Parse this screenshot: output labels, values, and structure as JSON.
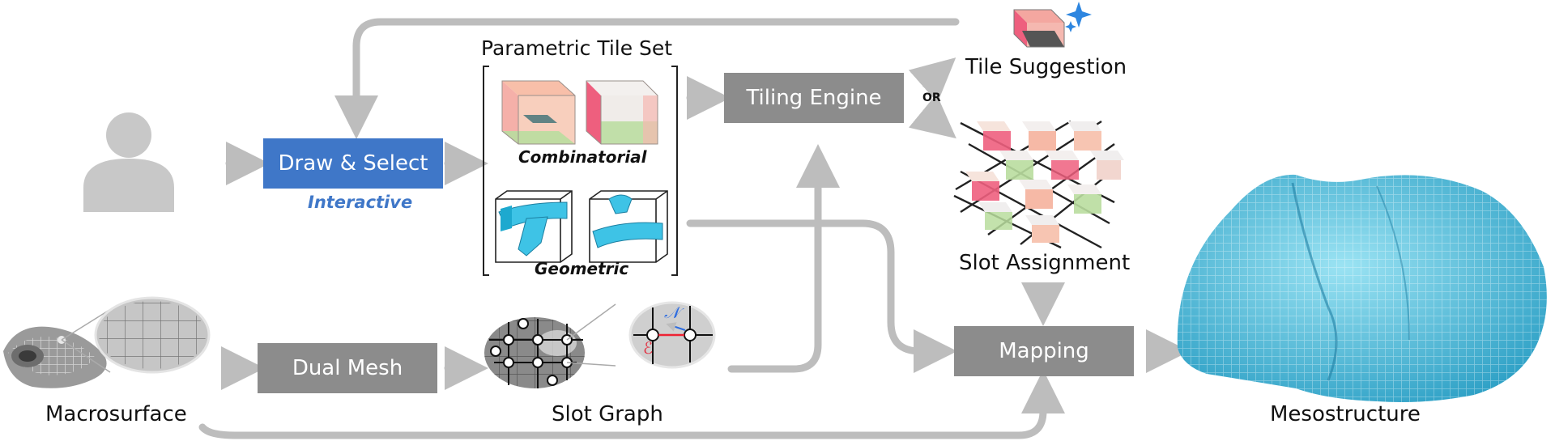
{
  "boxes": {
    "draw_select": "Draw & Select",
    "tiling_engine": "Tiling Engine",
    "dual_mesh": "Dual Mesh",
    "mapping": "Mapping"
  },
  "labels": {
    "interactive": "Interactive",
    "parametric_tile_set": "Parametric Tile Set",
    "combinatorial": "Combinatorial",
    "geometric": "Geometric",
    "tile_suggestion": "Tile Suggestion",
    "or": "OR",
    "slot_assignment": "Slot Assignment",
    "macrosurface": "Macrosurface",
    "slot_graph": "Slot Graph",
    "mesostructure": "Mesostructure",
    "node_label": "𝒩",
    "edge_label": "ℰ"
  },
  "colors": {
    "box_gray": "#8c8c8c",
    "box_blue": "#3f77c8",
    "arrow": "#bdbdbd",
    "interactive_text": "#3f77c8",
    "tile_cyan": "#3ec3e6",
    "tile_pink": "#ee5f7e",
    "tile_green": "#b9dd9e",
    "tile_orange": "#f7b49a",
    "mesostructure": "#4fbcd9"
  }
}
